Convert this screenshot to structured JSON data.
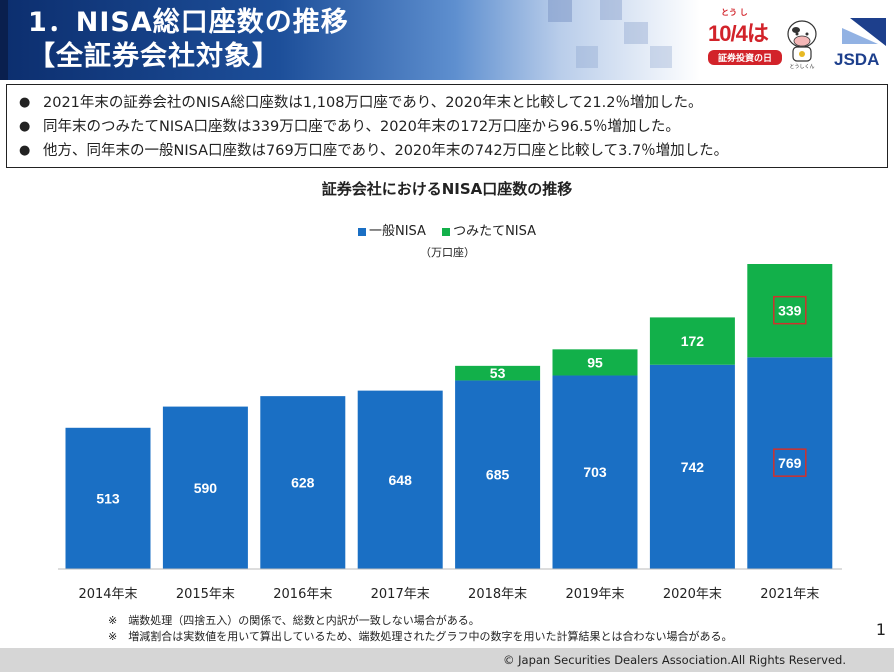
{
  "header": {
    "title_line1": "1．NISA総口座数の推移",
    "title_line2": "【全証券会社対象】"
  },
  "logos": {
    "event_date": "10/4は",
    "event_ruby": "とう し",
    "event_name": "証券投資の日",
    "mascot_caption": "とうしくん",
    "org": "JSDA"
  },
  "summary": [
    "2021年末の証券会社のNISA総口座数は1,108万口座であり、2020年末と比較して21.2％増加した。",
    "同年末のつみたてNISA口座数は339万口座であり、2020年末の172万口座から96.5％増加した。",
    "他方、同年末の一般NISA口座数は769万口座であり、2020年末の742万口座と比較して3.7％増加した。"
  ],
  "chart_data": {
    "type": "bar",
    "stacked": true,
    "title": "証券会社におけるNISA口座数の推移",
    "unit": "（万口座）",
    "categories": [
      "2014年末",
      "2015年末",
      "2016年末",
      "2017年末",
      "2018年末",
      "2019年末",
      "2020年末",
      "2021年末"
    ],
    "series": [
      {
        "name": "一般NISA",
        "color": "#1a6fc4",
        "values": [
          513,
          590,
          628,
          648,
          685,
          703,
          742,
          769
        ]
      },
      {
        "name": "つみたてNISA",
        "color": "#12b04a",
        "values": [
          null,
          null,
          null,
          null,
          53,
          95,
          172,
          339
        ]
      }
    ],
    "highlighted": [
      {
        "series": "一般NISA",
        "category": "2021年末"
      },
      {
        "series": "つみたてNISA",
        "category": "2021年末"
      }
    ],
    "highlight_color": "#d0312d",
    "legend_position": "top",
    "grid": false
  },
  "notes": [
    "※　端数処理（四捨五入）の関係で、総数と内訳が一致しない場合がある。",
    "※　増減割合は実数値を用いて算出しているため、端数処理されたグラフ中の数字を用いた計算結果とは合わない場合がある。"
  ],
  "footer": {
    "copyright": "© Japan Securities Dealers Association.All Rights Reserved.",
    "page": "1"
  }
}
